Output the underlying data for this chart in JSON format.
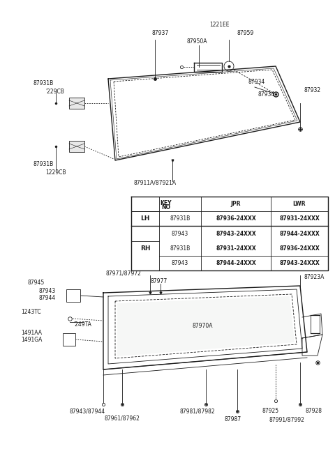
{
  "bg_color": "#ffffff",
  "line_color": "#1a1a1a",
  "table": {
    "rows": [
      {
        "group": "LH",
        "key": "87931B",
        "jpr": "87936-24XXX",
        "lwr": "87931-24XXX"
      },
      {
        "group": "LH",
        "key": "87943",
        "jpr": "87943-24XXX",
        "lwr": "87944-24XXX"
      },
      {
        "group": "RH",
        "key": "87931B",
        "jpr": "87931-24XXX",
        "lwr": "87936-24XXX"
      },
      {
        "group": "RH",
        "key": "87943",
        "jpr": "87944-24XXX",
        "lwr": "87943-24XXX"
      }
    ]
  }
}
